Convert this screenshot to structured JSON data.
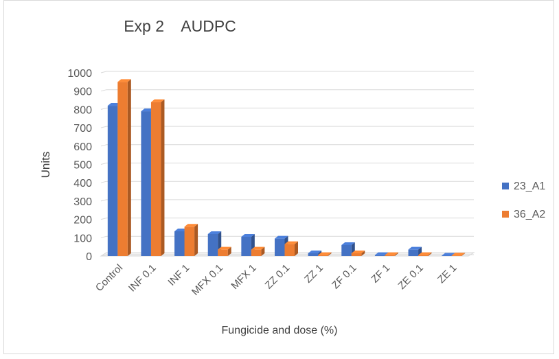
{
  "chart_data": {
    "type": "bar",
    "variant": "3d-clustered-column",
    "title": "Exp 2    AUDPC",
    "xlabel": "Fungicide and dose (%)",
    "ylabel": "Units",
    "ylim": [
      0,
      1000
    ],
    "yticks": [
      0,
      100,
      200,
      300,
      400,
      500,
      600,
      700,
      800,
      900,
      1000
    ],
    "grid": true,
    "legend_position": "right",
    "categories": [
      "Control",
      "INF 0.1",
      "INF 1",
      "MFX 0.1",
      "MFX 1",
      "ZZ 0.1",
      "ZZ 1",
      "ZF 0.1",
      "ZF 1",
      "ZE 0.1",
      "ZE 1"
    ],
    "series": [
      {
        "name": "23_A1",
        "color": "#4472c4",
        "values": [
          820,
          790,
          135,
          120,
          105,
          95,
          15,
          60,
          5,
          35,
          2
        ]
      },
      {
        "name": "36_A2",
        "color": "#ed7d31",
        "values": [
          950,
          840,
          160,
          35,
          35,
          65,
          5,
          15,
          5,
          5,
          3
        ]
      }
    ]
  }
}
